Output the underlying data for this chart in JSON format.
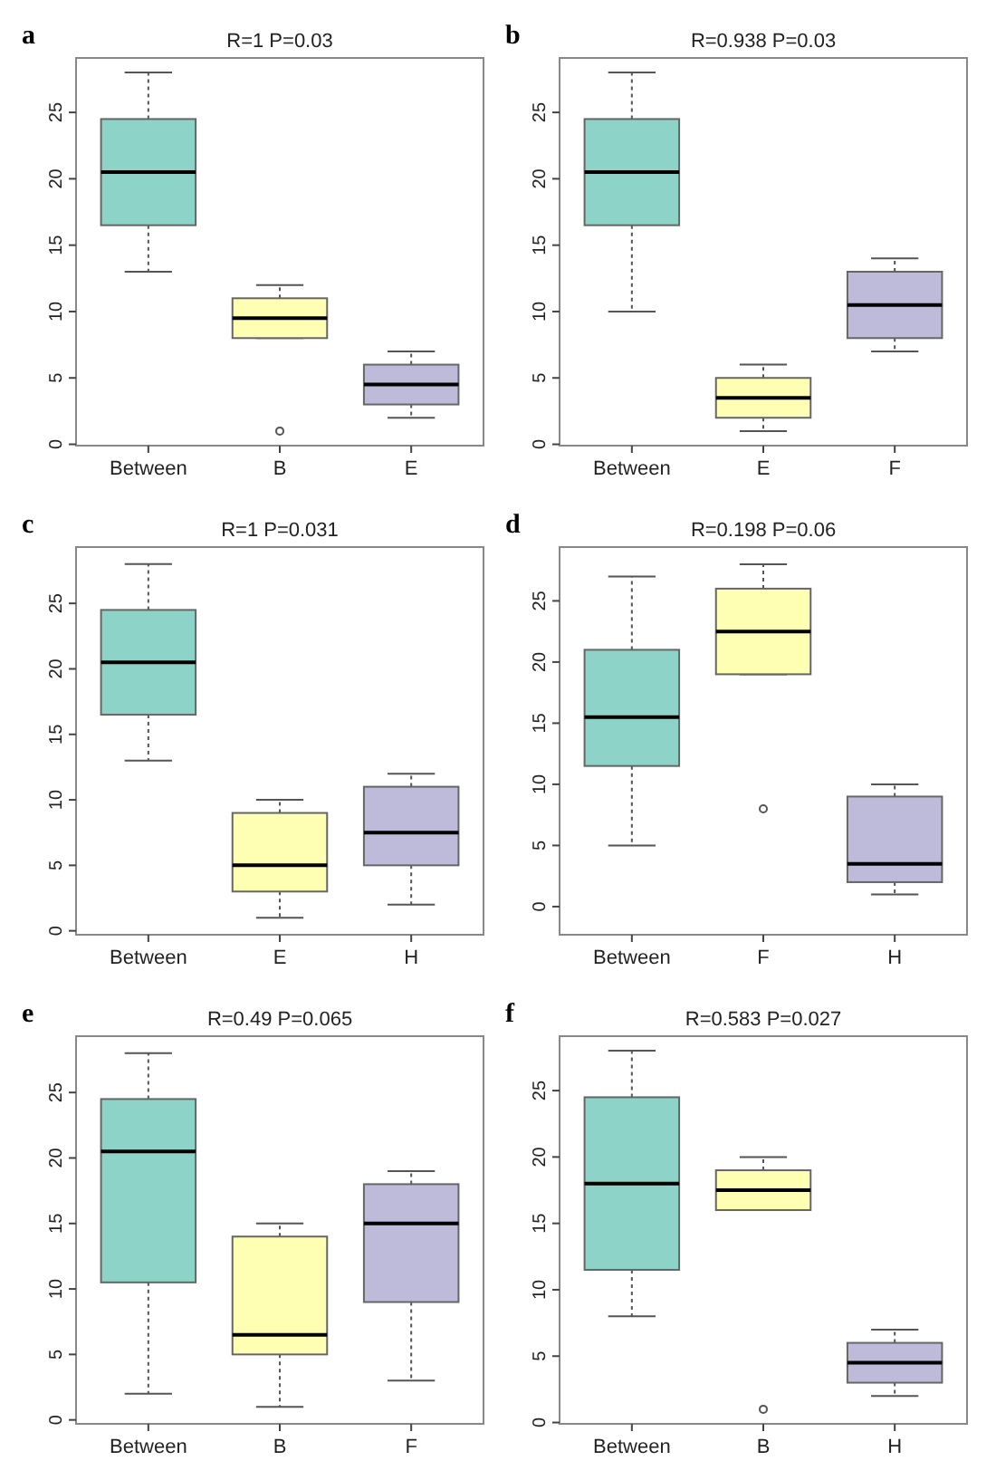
{
  "chart_data": [
    {
      "type": "box",
      "title": "R=1  P=0.03",
      "annotations": [
        "a"
      ],
      "categories": [
        "Between",
        "B",
        "E"
      ],
      "colors": [
        "#8dd3c7",
        "#ffffb3",
        "#bebada"
      ],
      "ylim": [
        -0.1,
        29.1
      ],
      "yticks": [
        0,
        5,
        10,
        15,
        20,
        25
      ],
      "grid": false,
      "boxes": [
        {
          "low": 13,
          "q1": 16.5,
          "median": 20.5,
          "q3": 24.5,
          "high": 28
        },
        {
          "low": 8,
          "q1": 8,
          "median": 9.5,
          "q3": 11,
          "high": 12,
          "outliers": [
            1
          ]
        },
        {
          "low": 2,
          "q1": 3,
          "median": 4.5,
          "q3": 6,
          "high": 7
        }
      ]
    },
    {
      "type": "box",
      "title": "R=0.938  P=0.03",
      "annotations": [
        "b"
      ],
      "categories": [
        "Between",
        "E",
        "F"
      ],
      "colors": [
        "#8dd3c7",
        "#ffffb3",
        "#bebada"
      ],
      "ylim": [
        -0.1,
        29.1
      ],
      "yticks": [
        0,
        5,
        10,
        15,
        20,
        25
      ],
      "grid": false,
      "boxes": [
        {
          "low": 10,
          "q1": 16.5,
          "median": 20.5,
          "q3": 24.5,
          "high": 28
        },
        {
          "low": 1,
          "q1": 2,
          "median": 3.5,
          "q3": 5,
          "high": 6
        },
        {
          "low": 7,
          "q1": 8,
          "median": 10.5,
          "q3": 13,
          "high": 14
        }
      ]
    },
    {
      "type": "box",
      "title": "R=1  P=0.031",
      "annotations": [
        "c"
      ],
      "categories": [
        "Between",
        "E",
        "H"
      ],
      "colors": [
        "#8dd3c7",
        "#ffffb3",
        "#bebada"
      ],
      "ylim": [
        -0.3,
        29.3
      ],
      "yticks": [
        0,
        5,
        10,
        15,
        20,
        25
      ],
      "grid": false,
      "boxes": [
        {
          "low": 13,
          "q1": 16.5,
          "median": 20.5,
          "q3": 24.5,
          "high": 28
        },
        {
          "low": 1,
          "q1": 3,
          "median": 5,
          "q3": 9,
          "high": 10
        },
        {
          "low": 2,
          "q1": 5,
          "median": 7.5,
          "q3": 11,
          "high": 12
        }
      ]
    },
    {
      "type": "box",
      "title": "R=0.198  P=0.06",
      "annotations": [
        "d"
      ],
      "categories": [
        "Between",
        "F",
        "H"
      ],
      "colors": [
        "#8dd3c7",
        "#ffffb3",
        "#bebada"
      ],
      "ylim": [
        -2.3,
        29.4
      ],
      "yticks": [
        0,
        5,
        10,
        15,
        20,
        25
      ],
      "grid": false,
      "boxes": [
        {
          "low": 5,
          "q1": 11.5,
          "median": 15.5,
          "q3": 21,
          "high": 27
        },
        {
          "low": 19,
          "q1": 19,
          "median": 22.5,
          "q3": 26,
          "high": 28,
          "outliers": [
            8
          ]
        },
        {
          "low": 1,
          "q1": 2,
          "median": 3.5,
          "q3": 9,
          "high": 10
        }
      ]
    },
    {
      "type": "box",
      "title": "R=0.49  P=0.065",
      "annotations": [
        "e"
      ],
      "categories": [
        "Between",
        "B",
        "F"
      ],
      "colors": [
        "#8dd3c7",
        "#ffffb3",
        "#bebada"
      ],
      "ylim": [
        -0.3,
        29.3
      ],
      "yticks": [
        0,
        5,
        10,
        15,
        20,
        25
      ],
      "grid": false,
      "boxes": [
        {
          "low": 2,
          "q1": 10.5,
          "median": 20.5,
          "q3": 24.5,
          "high": 28
        },
        {
          "low": 1,
          "q1": 5,
          "median": 6.5,
          "q3": 14,
          "high": 15
        },
        {
          "low": 3,
          "q1": 9,
          "median": 15,
          "q3": 18,
          "high": 19
        }
      ]
    },
    {
      "type": "box",
      "title": "R=0.583 P=0.027",
      "annotations": [
        "f"
      ],
      "categories": [
        "Between",
        "B",
        "H"
      ],
      "colors": [
        "#8dd3c7",
        "#ffffb3",
        "#bebada"
      ],
      "ylim": [
        -0.1,
        29.1
      ],
      "yticks": [
        0,
        5,
        10,
        15,
        20,
        25
      ],
      "grid": false,
      "boxes": [
        {
          "low": 8,
          "q1": 11.5,
          "median": 18,
          "q3": 24.5,
          "high": 28
        },
        {
          "low": 16,
          "q1": 16,
          "median": 17.5,
          "q3": 19,
          "high": 20,
          "outliers": [
            1
          ]
        },
        {
          "low": 2,
          "q1": 3,
          "median": 4.5,
          "q3": 6,
          "high": 7
        }
      ]
    }
  ]
}
